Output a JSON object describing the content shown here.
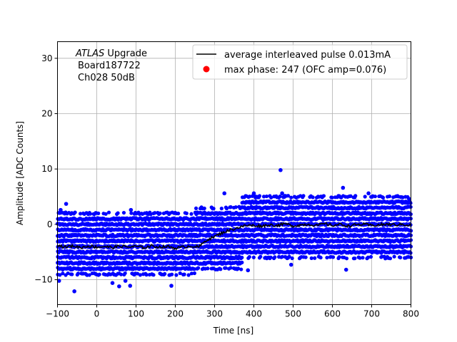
{
  "chart_data": {
    "type": "scatter",
    "xlabel": "Time [ns]",
    "ylabel": "Amplitude [ADC Counts]",
    "xlim": [
      -100,
      800
    ],
    "ylim": [
      -14.5,
      33
    ],
    "grid": true,
    "x_ticks": [
      -100,
      0,
      100,
      200,
      300,
      400,
      500,
      600,
      700,
      800
    ],
    "y_ticks": [
      -10,
      0,
      10,
      20,
      30
    ],
    "annotation": {
      "lines": [
        "ATLAS Upgrade",
        "Board187722",
        "Ch028 50dB"
      ],
      "italic_word": "ATLAS",
      "rest_of_first_line": " Upgrade"
    },
    "legend": {
      "placement": "top-right",
      "entries": [
        {
          "label": "average interleaved pulse 0.013mA",
          "marker": "line",
          "color": "#000000"
        },
        {
          "label": "max phase: 247 (OFC amp=0.076)",
          "marker": "dot",
          "color": "#ff0000"
        }
      ]
    },
    "series": [
      {
        "kind": "scatter",
        "color": "#0000ff",
        "description_bands": [
          {
            "x_from": -100,
            "x_to": 250,
            "y_min": -9,
            "y_max": 2
          },
          {
            "x_from": 250,
            "x_to": 370,
            "y_min": -8,
            "y_max": 3
          },
          {
            "x_from": 370,
            "x_to": 800,
            "y_min": -6,
            "y_max": 5
          }
        ],
        "outliers": [
          {
            "x": -92,
            "y": 2.6
          },
          {
            "x": -78,
            "y": 3.7
          },
          {
            "x": -96,
            "y": -10.2
          },
          {
            "x": -57,
            "y": -12.1
          },
          {
            "x": 40,
            "y": -10.6
          },
          {
            "x": 57,
            "y": -11.2
          },
          {
            "x": 73,
            "y": -10.2
          },
          {
            "x": 85,
            "y": -11.1
          },
          {
            "x": 87,
            "y": 2.6
          },
          {
            "x": 190,
            "y": -11.1
          },
          {
            "x": 270,
            "y": 2.0
          },
          {
            "x": 325,
            "y": 5.6
          },
          {
            "x": 400,
            "y": 5.6
          },
          {
            "x": 468,
            "y": 9.8
          },
          {
            "x": 472,
            "y": 5.6
          },
          {
            "x": 627,
            "y": 6.6
          },
          {
            "x": 692,
            "y": 5.6
          },
          {
            "x": 795,
            "y": 4.6
          },
          {
            "x": 385,
            "y": -8.3
          },
          {
            "x": 495,
            "y": -7.3
          },
          {
            "x": 635,
            "y": -8.2
          }
        ]
      },
      {
        "kind": "line",
        "color": "#000000",
        "x": [
          -100,
          -80,
          -60,
          -40,
          -20,
          0,
          20,
          40,
          60,
          80,
          100,
          120,
          140,
          160,
          180,
          200,
          220,
          240,
          260,
          280,
          300,
          320,
          340,
          360,
          380,
          400,
          420,
          440,
          460,
          480,
          500,
          520,
          540,
          560,
          580,
          600,
          620,
          640,
          660,
          680,
          700,
          720,
          740,
          760,
          780,
          800
        ],
        "y": [
          -3.8,
          -4.1,
          -3.9,
          -4.2,
          -3.9,
          -4.1,
          -4.0,
          -4.2,
          -3.9,
          -4.1,
          -4.0,
          -4.2,
          -3.9,
          -4.1,
          -4.0,
          -4.3,
          -4.1,
          -3.9,
          -4.1,
          -2.8,
          -2.2,
          -1.5,
          -1.0,
          -0.6,
          -0.2,
          -0.2,
          -0.3,
          -0.1,
          -0.2,
          0.1,
          -0.3,
          -0.1,
          0.0,
          -0.2,
          0.1,
          -0.2,
          0.0,
          -0.3,
          -0.1,
          0.0,
          -0.2,
          -0.1,
          0.0,
          -0.1,
          0.0,
          -0.2
        ]
      }
    ]
  }
}
